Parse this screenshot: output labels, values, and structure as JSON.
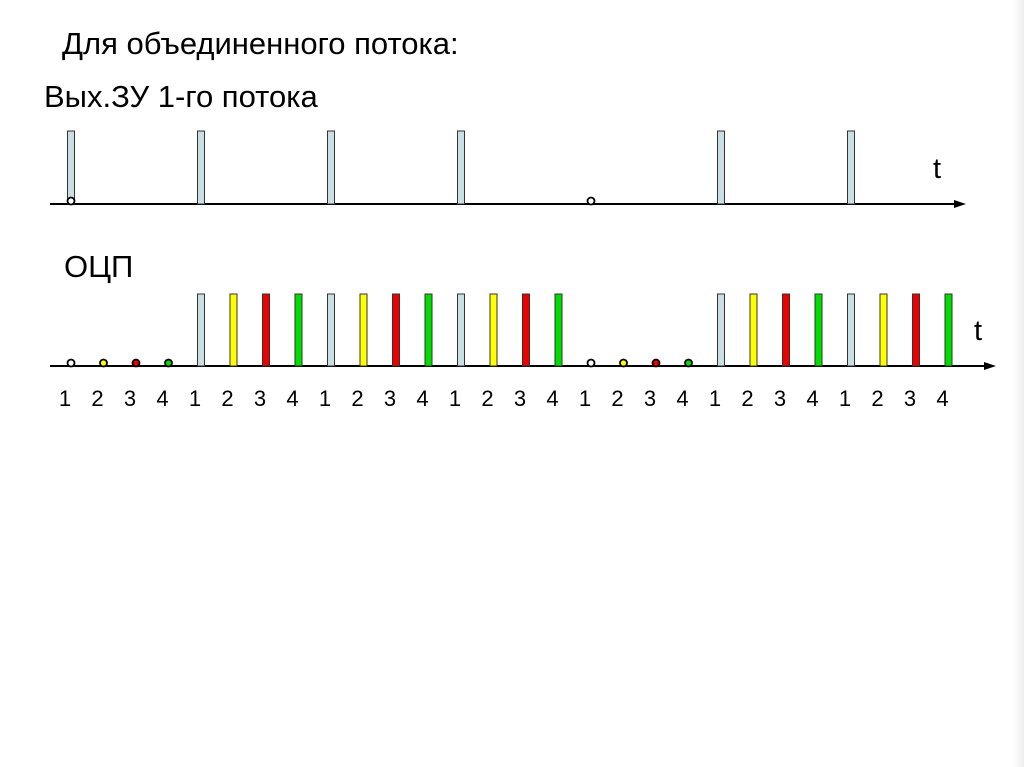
{
  "title": "Для объединенного потока:",
  "stream1": {
    "label": "Вых.ЗУ 1-го потока",
    "axis_label": "t",
    "pulses": [
      "pulse",
      "empty",
      "empty",
      "empty",
      "pulse",
      "empty",
      "empty",
      "empty",
      "pulse",
      "empty",
      "empty",
      "empty",
      "pulse",
      "empty",
      "empty",
      "empty",
      "empty",
      "empty",
      "empty",
      "empty",
      "pulse",
      "empty",
      "empty",
      "empty",
      "pulse",
      "empty",
      "empty",
      "empty"
    ],
    "markers": [
      "circle",
      "empty",
      "empty",
      "empty",
      "empty",
      "empty",
      "empty",
      "empty",
      "empty",
      "empty",
      "empty",
      "empty",
      "empty",
      "empty",
      "empty",
      "empty",
      "circle",
      "empty",
      "empty",
      "empty",
      "empty",
      "empty",
      "empty",
      "empty",
      "empty",
      "empty",
      "empty",
      "empty"
    ]
  },
  "ocp": {
    "label": "ОЦП",
    "axis_label": "t",
    "pulses": [
      "none",
      "none",
      "none",
      "none",
      "ch1",
      "ch2",
      "ch3",
      "ch4",
      "ch1",
      "ch2",
      "ch3",
      "ch4",
      "ch1",
      "ch2",
      "ch3",
      "ch4",
      "none",
      "none",
      "none",
      "none",
      "ch1",
      "ch2",
      "ch3",
      "ch4",
      "ch1",
      "ch2",
      "ch3",
      "ch4"
    ],
    "markers": [
      "ch1",
      "ch2",
      "ch3",
      "ch4",
      "none",
      "none",
      "none",
      "none",
      "none",
      "none",
      "none",
      "none",
      "none",
      "none",
      "none",
      "none",
      "ch1",
      "ch2",
      "ch3",
      "ch4",
      "none",
      "none",
      "none",
      "none",
      "none",
      "none",
      "none",
      "none"
    ]
  },
  "slot_numbers": [
    "1",
    "2",
    "3",
    "4",
    "1",
    "2",
    "3",
    "4",
    "1",
    "2",
    "3",
    "4",
    "1",
    "2",
    "3",
    "4",
    "1",
    "2",
    "3",
    "4",
    "1",
    "2",
    "3",
    "4",
    "1",
    "2",
    "3",
    "4"
  ],
  "colors": {
    "ch1": "#c8dfe4",
    "ch2": "#ffff00",
    "ch3": "#ee0000",
    "ch4": "#00dd00",
    "axis": "#000000"
  }
}
